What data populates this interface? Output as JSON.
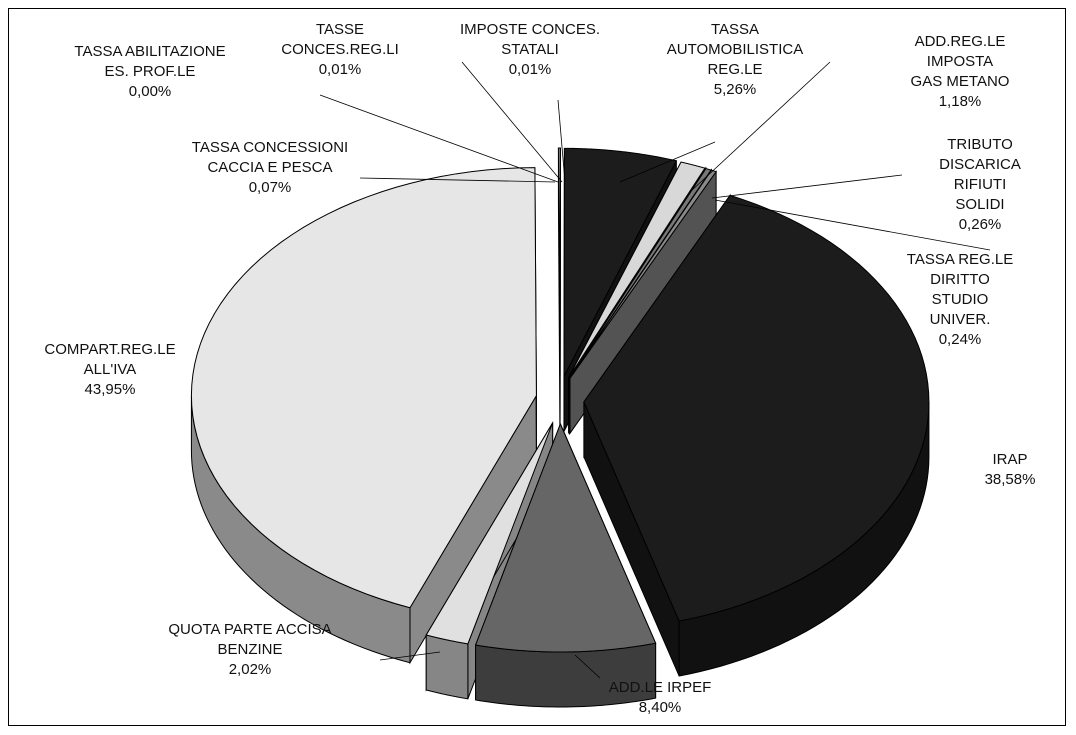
{
  "chart_data": {
    "type": "pie",
    "categories": [
      "TASSE\nCONCES.REG.LI",
      "IMPOSTE CONCES.\nSTATALI",
      "TASSA\nAUTOMOBILISTICA\nREG.LE",
      "ADD.REG.LE IMPOSTA\nGAS METANO",
      "TRIBUTO DISCARICA\nRIFIUTI SOLIDI",
      "TASSA REG.LE\nDIRITTO STUDIO\nUNIVER.",
      "IRAP",
      "ADD.LE IRPEF",
      "QUOTA PARTE ACCISA\nBENZINE",
      "COMPART.REG.LE\nALL'IVA",
      "TASSA CONCESSIONI\nCACCIA E PESCA",
      "TASSA ABILITAZIONE\nES. PROF.LE"
    ],
    "values": [
      0.01,
      0.01,
      5.26,
      1.18,
      0.26,
      0.24,
      38.58,
      8.4,
      2.02,
      43.95,
      0.07,
      0.0
    ],
    "value_labels": [
      "0,01%",
      "0,01%",
      "5,26%",
      "1,18%",
      "0,26%",
      "0,24%",
      "38,58%",
      "8,40%",
      "2,02%",
      "43,95%",
      "0,07%",
      "0,00%"
    ],
    "colors": [
      "#ffffff",
      "#ffffff",
      "#1c1c1c",
      "#d8d8d8",
      "#777777",
      "#8a8a8a",
      "#1c1c1c",
      "#666666",
      "#e0e0e0",
      "#e6e6e6",
      "#ffffff",
      "#ffffff"
    ]
  }
}
